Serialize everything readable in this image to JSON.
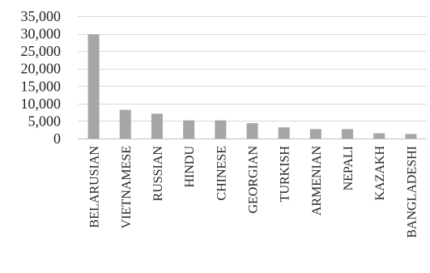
{
  "chart_data": {
    "type": "bar",
    "title": "",
    "xlabel": "",
    "ylabel": "",
    "categories": [
      "BELARUSIAN",
      "VIETNAMESE",
      "RUSSIAN",
      "HINDU",
      "CHINESE",
      "GEORGIAN",
      "TURKISH",
      "ARMENIAN",
      "NEPALI",
      "KAZAKH",
      "BANGLADESHI"
    ],
    "values": [
      29800,
      8200,
      7100,
      5200,
      5200,
      4400,
      3200,
      2700,
      2700,
      1500,
      1300
    ],
    "ylim": [
      0,
      35000
    ],
    "yticks": [
      0,
      5000,
      10000,
      15000,
      20000,
      25000,
      30000,
      35000
    ],
    "ytick_labels": [
      "0",
      "5,000",
      "10,000",
      "15,000",
      "20,000",
      "25,000",
      "30,000",
      "35,000"
    ],
    "grid": true,
    "legend": "none",
    "colors": {
      "bar": "#a6a6a6",
      "grid": "#d9d9d9",
      "axis": "#bfbfbf",
      "text": "#222222"
    }
  }
}
